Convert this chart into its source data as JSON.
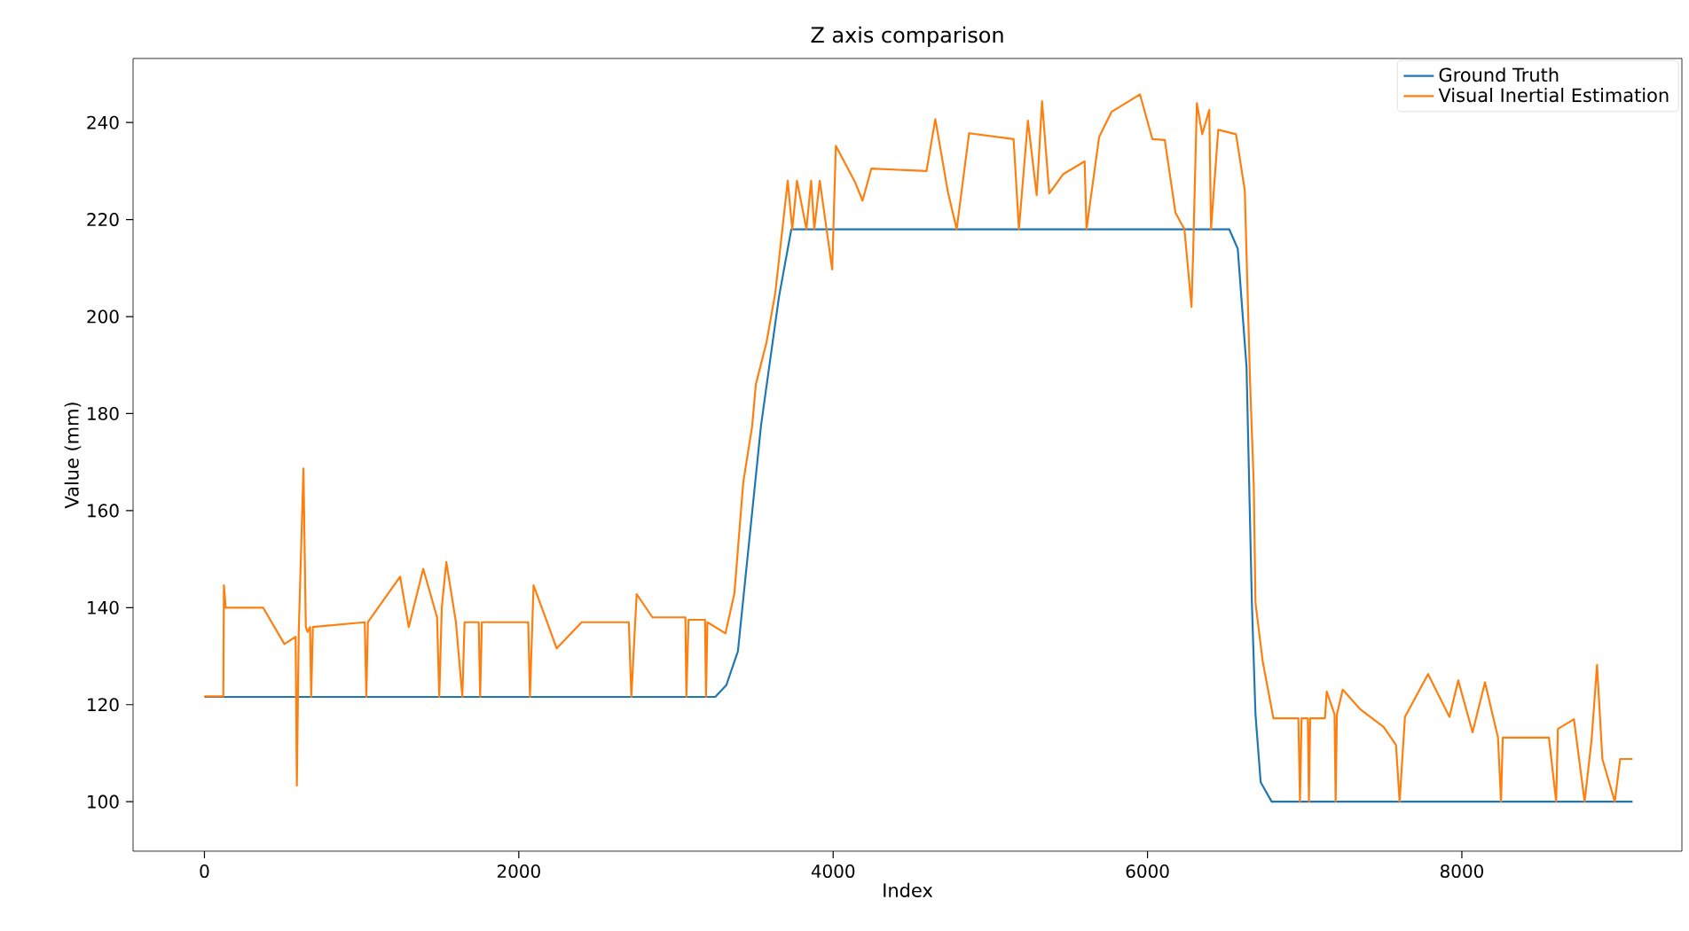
{
  "chart_data": {
    "type": "line",
    "title": "Z axis comparison",
    "xlabel": "Index",
    "ylabel": "Value (mm)",
    "xlim": [
      -454,
      9400
    ],
    "ylim": [
      89.8,
      253.2
    ],
    "xticks": [
      0,
      2000,
      4000,
      6000,
      8000
    ],
    "yticks": [
      100,
      120,
      140,
      160,
      180,
      200,
      220,
      240
    ],
    "legend": "top right",
    "grid": false,
    "line_style": "solid",
    "marker": "none",
    "series": [
      {
        "name": "Ground Truth",
        "color": "#1f77b4",
        "x": [
          0,
          3250,
          3320,
          3394,
          3541,
          3655,
          3734,
          6520,
          6574,
          6630,
          6664,
          6687,
          6720,
          6790,
          9086
        ],
        "values": [
          121.6,
          121.6,
          124,
          131,
          177.5,
          204,
          218,
          218,
          214,
          189.6,
          141,
          118,
          104,
          100,
          100
        ]
      },
      {
        "name": "Visual Inertial Estimation",
        "color": "#ff7f0e",
        "x": [
          0,
          120,
          124,
          135,
          373,
          509,
          580,
          588,
          600,
          630,
          645,
          656,
          672,
          679,
          690,
          1020,
          1030,
          1040,
          1245,
          1300,
          1392,
          1480,
          1494,
          1510,
          1539,
          1600,
          1641,
          1655,
          1745,
          1754,
          1765,
          2060,
          2071,
          2094,
          2180,
          2241,
          2400,
          2700,
          2716,
          2750,
          2850,
          3060,
          3066,
          3080,
          3185,
          3191,
          3200,
          3315,
          3372,
          3394,
          3428,
          3485,
          3508,
          3576,
          3632,
          3711,
          3740,
          3770,
          3830,
          3860,
          3880,
          3915,
          3994,
          4017,
          4141,
          4187,
          4243,
          4594,
          4650,
          4730,
          4786,
          4865,
          5148,
          5182,
          5239,
          5295,
          5329,
          5375,
          5465,
          5600,
          5612,
          5692,
          5771,
          5952,
          6031,
          6110,
          6178,
          6235,
          6280,
          6291,
          6314,
          6348,
          6393,
          6404,
          6450,
          6563,
          6619,
          6653,
          6676,
          6687,
          6733,
          6801,
          6960,
          6970,
          6980,
          7020,
          7027,
          7035,
          7129,
          7140,
          7190,
          7197,
          7205,
          7242,
          7355,
          7502,
          7581,
          7604,
          7638,
          7785,
          7921,
          7977,
          8068,
          8147,
          8230,
          8249,
          8260,
          8554,
          8600,
          8611,
          8713,
          8781,
          8826,
          8860,
          8894,
          8973,
          9007,
          9086
        ],
        "values": [
          121.7,
          121.7,
          144.6,
          140,
          140,
          132.5,
          134,
          103.3,
          135,
          168.7,
          136,
          135,
          136,
          121.6,
          136,
          137,
          121.6,
          137,
          146.4,
          136,
          148,
          138,
          121.6,
          140,
          149.4,
          137,
          121.6,
          137,
          137,
          121.6,
          137,
          137,
          121.6,
          144.6,
          137,
          131.6,
          137,
          137,
          121.6,
          142.8,
          138,
          138,
          121.6,
          137.5,
          137.5,
          121.6,
          137,
          134.7,
          143,
          152,
          165.8,
          177.5,
          186,
          194.7,
          204.9,
          228,
          218,
          228,
          218,
          228,
          218,
          228,
          209.7,
          235.2,
          227.6,
          223.9,
          230.5,
          230,
          240.7,
          225.7,
          218,
          237.8,
          236.6,
          218,
          240.4,
          225,
          244.4,
          225.4,
          229.4,
          232,
          218,
          237,
          242.2,
          245.8,
          236.6,
          236.4,
          221.4,
          218,
          202,
          214,
          244,
          237.6,
          242.6,
          218,
          238.5,
          237.6,
          226,
          186,
          165.4,
          141,
          128.9,
          117.2,
          117.2,
          100,
          117.2,
          117.2,
          100,
          117.2,
          117.2,
          122.7,
          118,
          100,
          118,
          123.1,
          119,
          115.4,
          111.7,
          100,
          117.5,
          126.3,
          117.5,
          125,
          114.3,
          124.6,
          113.2,
          100,
          113.2,
          113.2,
          100,
          115,
          117,
          100,
          113,
          128.2,
          108.8,
          100,
          108.8,
          108.8
        ]
      }
    ]
  }
}
